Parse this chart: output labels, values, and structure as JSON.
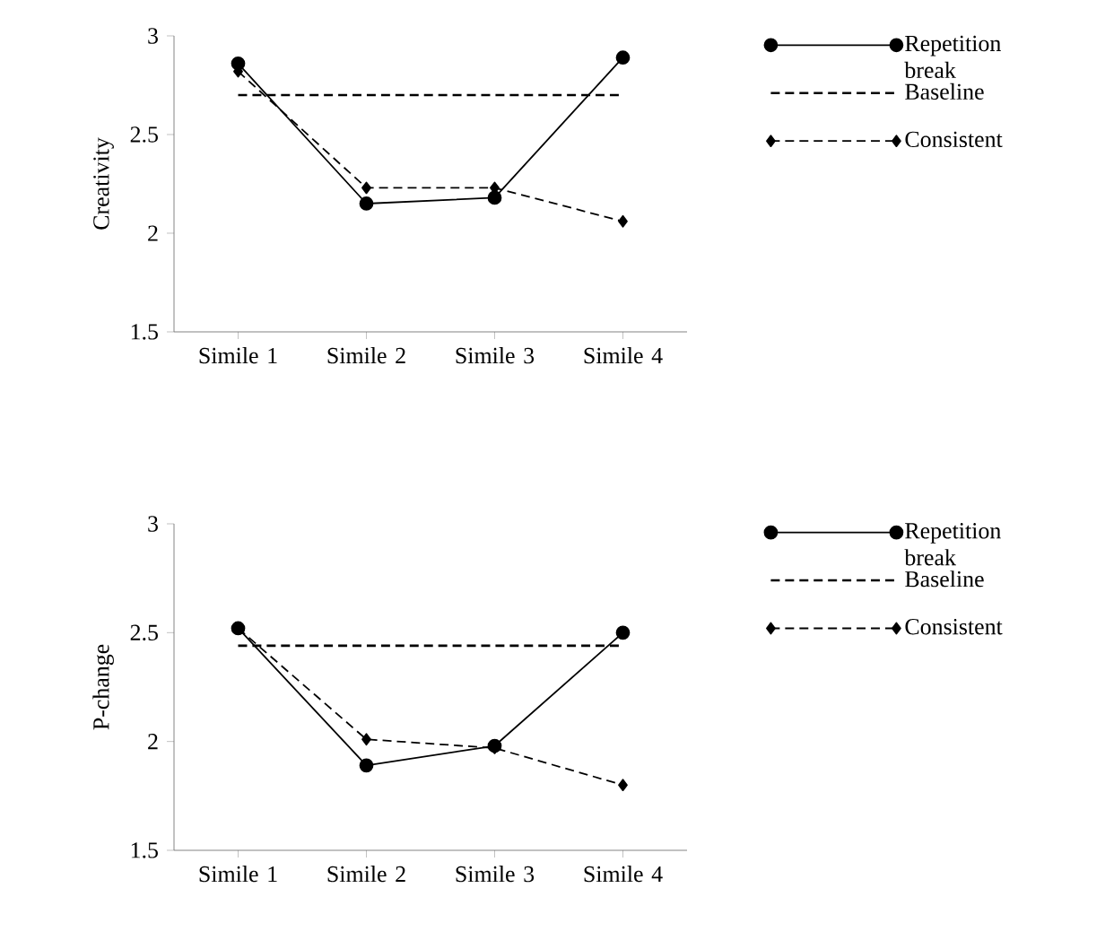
{
  "chart_data": [
    {
      "type": "line",
      "ylabel": "Creativity",
      "categories": [
        "Simile 1",
        "Simile 2",
        "Simile 3",
        "Simile 4"
      ],
      "ylim": [
        1.5,
        3
      ],
      "yticks": [
        1.5,
        2,
        2.5,
        3
      ],
      "legend": "right",
      "series": [
        {
          "name": "Repetition break",
          "color": "#000000",
          "marker": "circle",
          "line_style": "solid",
          "values": [
            2.86,
            2.15,
            2.18,
            2.89
          ]
        },
        {
          "name": "Baseline",
          "color": "#000000",
          "marker": "none",
          "line_style": "dashed",
          "values": [
            2.7,
            2.7,
            2.7,
            2.7
          ]
        },
        {
          "name": "Consistent",
          "color": "#000000",
          "marker": "diamond",
          "line_style": "dashed",
          "values": [
            2.82,
            2.23,
            2.23,
            2.06
          ]
        }
      ]
    },
    {
      "type": "line",
      "ylabel": "P-change",
      "categories": [
        "Simile 1",
        "Simile 2",
        "Simile 3",
        "Simile 4"
      ],
      "ylim": [
        1.5,
        3
      ],
      "yticks": [
        1.5,
        2,
        2.5,
        3
      ],
      "legend": "right",
      "series": [
        {
          "name": "Repetition break",
          "color": "#000000",
          "marker": "circle",
          "line_style": "solid",
          "values": [
            2.52,
            1.89,
            1.98,
            2.5
          ]
        },
        {
          "name": "Baseline",
          "color": "#000000",
          "marker": "none",
          "line_style": "dashed",
          "values": [
            2.44,
            2.44,
            2.44,
            2.44
          ]
        },
        {
          "name": "Consistent",
          "color": "#000000",
          "marker": "diamond",
          "line_style": "dashed",
          "values": [
            2.52,
            2.01,
            1.97,
            1.8
          ]
        }
      ]
    }
  ]
}
